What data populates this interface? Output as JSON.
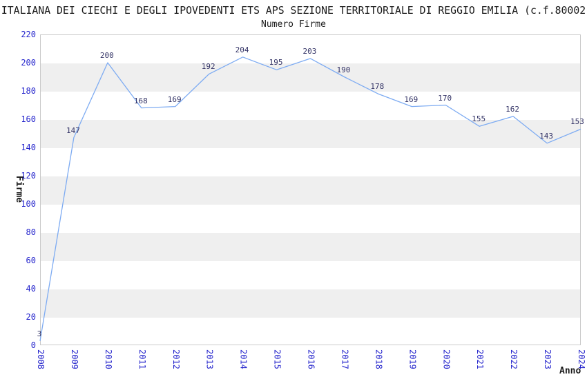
{
  "header": {
    "title": "ITALIANA DEI CIECHI E DEGLI IPOVEDENTI ETS APS SEZIONE TERRITORIALE DI REGGIO EMILIA (c.f.80002"
  },
  "chart_data": {
    "type": "line",
    "title": "Numero Firme",
    "xlabel": "Anno",
    "ylabel": "Firme",
    "x": [
      "2008",
      "2009",
      "2010",
      "2011",
      "2012",
      "2013",
      "2014",
      "2015",
      "2016",
      "2017",
      "2018",
      "2019",
      "2020",
      "2021",
      "2022",
      "2023",
      "2024"
    ],
    "values": [
      3,
      147,
      200,
      168,
      169,
      192,
      204,
      195,
      203,
      190,
      178,
      169,
      170,
      155,
      162,
      143,
      153
    ],
    "ylim": [
      0,
      220
    ],
    "ytick_step": 20,
    "yticks": [
      0,
      20,
      40,
      60,
      80,
      100,
      120,
      140,
      160,
      180,
      200,
      220
    ],
    "grid": "alternating-horizontal-bands",
    "legend_position": "none",
    "data_labels_shown": true,
    "colors": {
      "line": "#7dabf2",
      "tick_text": "#2424cc",
      "data_label_text": "#333366",
      "band_fill": "#efefef",
      "plot_border": "#c9c9c9",
      "text": "#1a1a1a"
    }
  }
}
